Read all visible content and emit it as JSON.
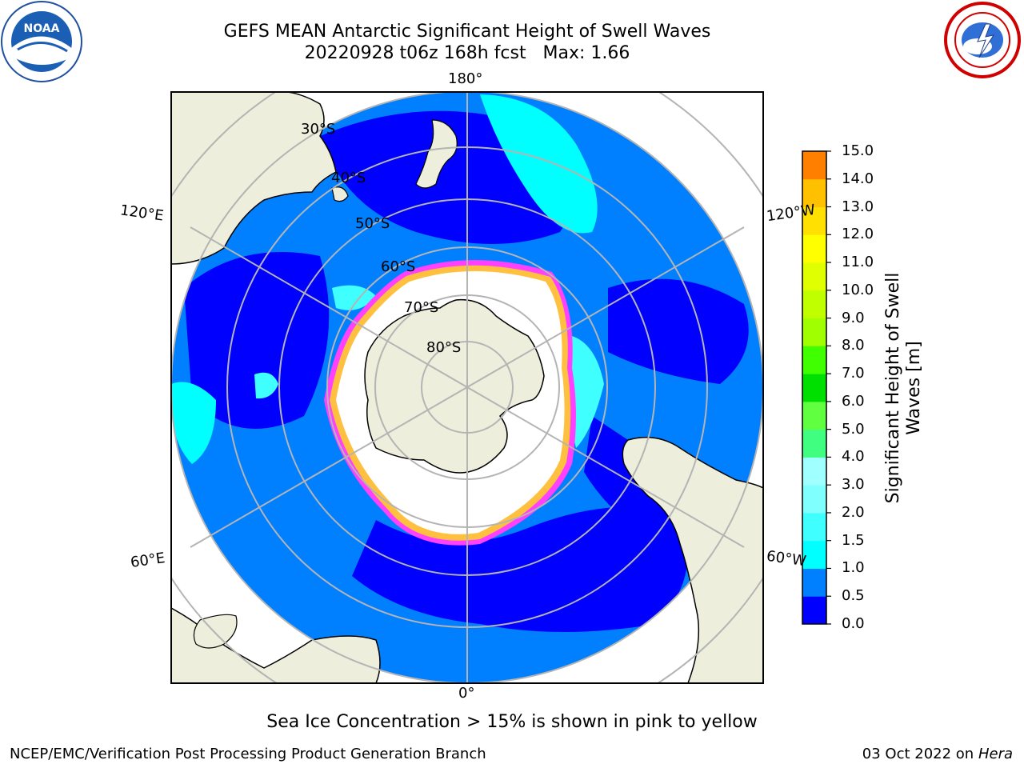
{
  "title": {
    "line1": "GEFS MEAN Antarctic Significant Height of Swell Waves",
    "line2": "20220928 t06z 168h fcst   Max: 1.66"
  },
  "logos": {
    "left": "noaa-logo",
    "left_text": "NOAA",
    "right": "national-weather-service-logo"
  },
  "map": {
    "projection": "south-polar-stereographic",
    "lat_labels": [
      "30°S",
      "40°S",
      "50°S",
      "60°S",
      "70°S",
      "80°S"
    ],
    "lon_labels": {
      "top": "180°",
      "bottom": "0°",
      "left_upper": "120°E",
      "left_lower": "60°E",
      "right_upper": "120°W",
      "right_lower": "60°W"
    },
    "land_color": "#eeeedc",
    "ice_color": "#ffffff"
  },
  "colorbar": {
    "label": "Significant Height of Swell Waves [m]",
    "ticks": [
      "0.0",
      "0.5",
      "1.0",
      "1.5",
      "2.0",
      "3.0",
      "4.0",
      "5.0",
      "6.0",
      "7.0",
      "8.0",
      "9.0",
      "10.0",
      "11.0",
      "12.0",
      "13.0",
      "14.0",
      "15.0"
    ],
    "colors": [
      "#0000ff",
      "#0080ff",
      "#00ffff",
      "#40ffff",
      "#80ffff",
      "#a0ffff",
      "#40ff80",
      "#60ff40",
      "#00e000",
      "#40ff00",
      "#a0ff00",
      "#c0ff00",
      "#e0ff00",
      "#ffff00",
      "#ffe000",
      "#ffc000",
      "#ff8000",
      "#ff4000",
      "#ff0000"
    ]
  },
  "note": "Sea Ice Concentration > 15% is shown in pink to yellow",
  "footer": {
    "left": "NCEP/EMC/Verification Post Processing Product Generation Branch",
    "right_date": "03 Oct 2022 on",
    "right_machine": "Hera"
  }
}
